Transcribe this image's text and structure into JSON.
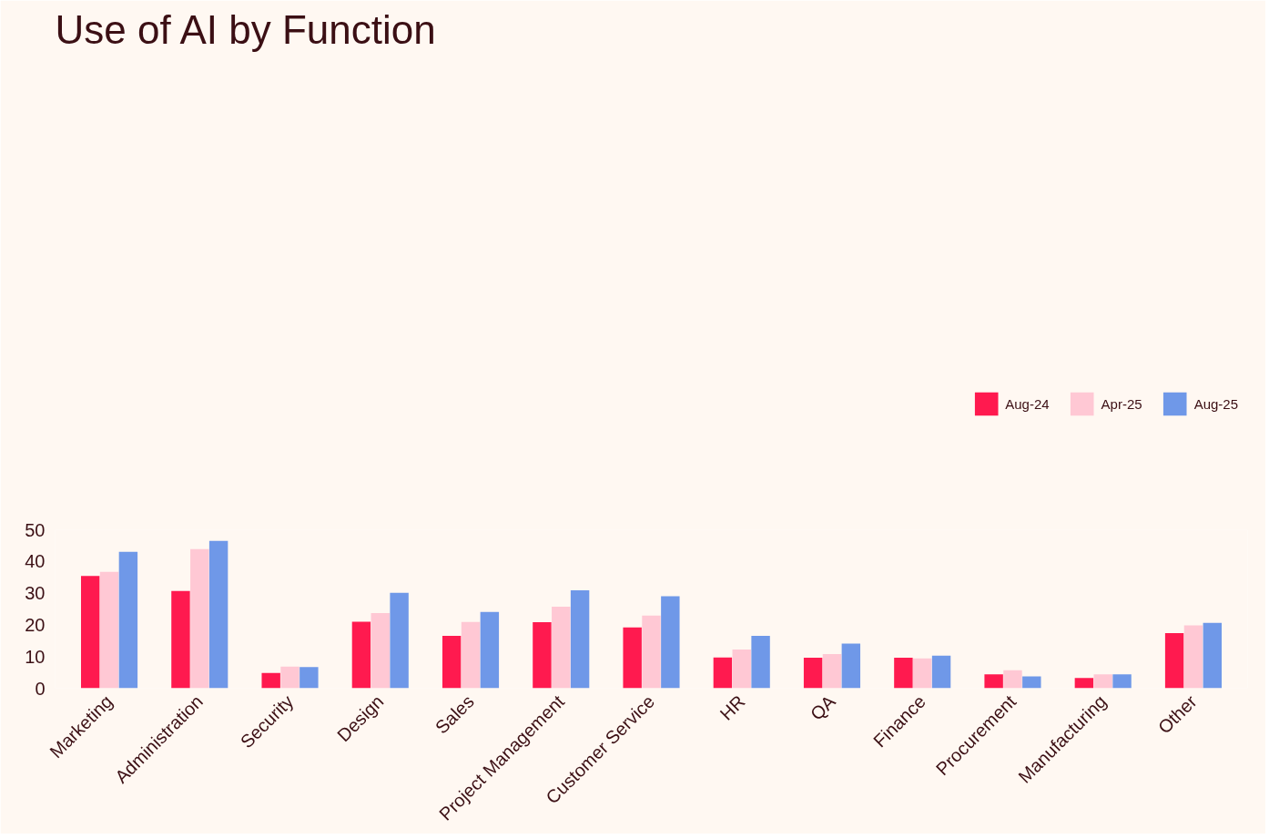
{
  "chart_data": {
    "type": "bar",
    "title": "Use of AI by Function",
    "categories": [
      "Marketing",
      "Administration",
      "Security",
      "Design",
      "Sales",
      "Project Management",
      "Customer Service",
      "HR",
      "QA",
      "Finance",
      "Procurement",
      "Manufacturing",
      "Other"
    ],
    "series": [
      {
        "name": "Aug-24",
        "color": "#ff1a4f",
        "values": [
          35.4,
          30.7,
          4.8,
          21.0,
          16.5,
          20.8,
          19.2,
          9.7,
          9.6,
          9.6,
          4.4,
          3.2,
          17.4
        ]
      },
      {
        "name": "Apr-25",
        "color": "#ffc8d4",
        "values": [
          36.7,
          43.9,
          6.8,
          23.7,
          20.9,
          25.7,
          22.9,
          12.2,
          10.8,
          9.4,
          5.7,
          4.4,
          19.8
        ]
      },
      {
        "name": "Aug-25",
        "color": "#6f98e8",
        "values": [
          43.0,
          46.5,
          6.7,
          30.1,
          24.1,
          30.9,
          29.0,
          16.5,
          14.1,
          10.3,
          3.7,
          4.4,
          20.6
        ]
      }
    ],
    "ylim": [
      0,
      50
    ],
    "yticks": [
      0,
      10,
      20,
      30,
      40,
      50
    ],
    "grid": false,
    "legend": "top right"
  }
}
